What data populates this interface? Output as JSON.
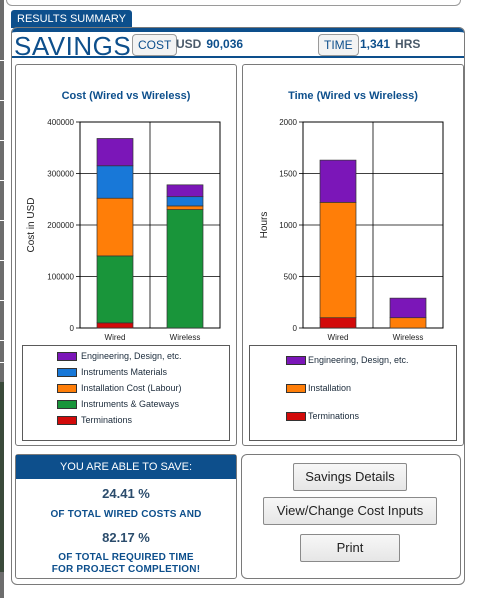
{
  "results_tab": "RESULTS SUMMARY",
  "header": {
    "title": "SAVINGS",
    "cost_label": "COST",
    "cost_currency": "USD",
    "cost_value": "90,036",
    "time_label": "TIME",
    "time_value": "1,341",
    "time_unit": "HRS"
  },
  "colors": {
    "engineering": "#7b16b8",
    "instruments_materials": "#1878d8",
    "installation": "#ff7e08",
    "instruments_gateways": "#19953a",
    "terminations": "#d20a0a",
    "brand": "#0d4f8c"
  },
  "chart_data": [
    {
      "type": "bar",
      "stacked": true,
      "title": "Cost (Wired vs Wireless)",
      "ylabel": "Cost in USD",
      "xlabel": "",
      "ylim": [
        0,
        400000
      ],
      "yticks": [
        "0",
        "100000",
        "200000",
        "300000",
        "400000"
      ],
      "grid": true,
      "categories": [
        "Wired",
        "Wireless"
      ],
      "series": [
        {
          "name": "Terminations",
          "values": [
            10000,
            0
          ]
        },
        {
          "name": "Instruments & Gateways",
          "values": [
            130000,
            230000
          ]
        },
        {
          "name": "Installation Cost (Labour)",
          "values": [
            112000,
            7000
          ]
        },
        {
          "name": "Instruments Materials",
          "values": [
            63000,
            18000
          ]
        },
        {
          "name": "Engineering, Design, etc.",
          "values": [
            53000,
            23000
          ]
        }
      ],
      "legend": [
        "Engineering, Design, etc.",
        "Instruments Materials",
        "Installation Cost (Labour)",
        "Instruments & Gateways",
        "Terminations"
      ]
    },
    {
      "type": "bar",
      "stacked": true,
      "title": "Time (Wired vs Wireless)",
      "ylabel": "Hours",
      "xlabel": "",
      "ylim": [
        0,
        2000
      ],
      "yticks": [
        "0",
        "500",
        "1000",
        "1500",
        "2000"
      ],
      "grid": true,
      "categories": [
        "Wired",
        "Wireless"
      ],
      "series": [
        {
          "name": "Terminations",
          "values": [
            100,
            0
          ]
        },
        {
          "name": "Installation",
          "values": [
            1120,
            100
          ]
        },
        {
          "name": "Engineering, Design, etc.",
          "values": [
            410,
            190
          ]
        }
      ],
      "legend": [
        "Engineering, Design, etc.",
        "Installation",
        "Terminations"
      ]
    }
  ],
  "savings": {
    "heading": "YOU ARE ABLE TO SAVE:",
    "cost_pct": "24.41 %",
    "cost_caption": "OF TOTAL WIRED COSTS AND",
    "time_pct": "82.17 %",
    "time_caption_1": "OF TOTAL REQUIRED TIME",
    "time_caption_2": "FOR PROJECT COMPLETION!"
  },
  "buttons": {
    "details": "Savings Details",
    "view_change": "View/Change Cost Inputs",
    "print": "Print"
  }
}
